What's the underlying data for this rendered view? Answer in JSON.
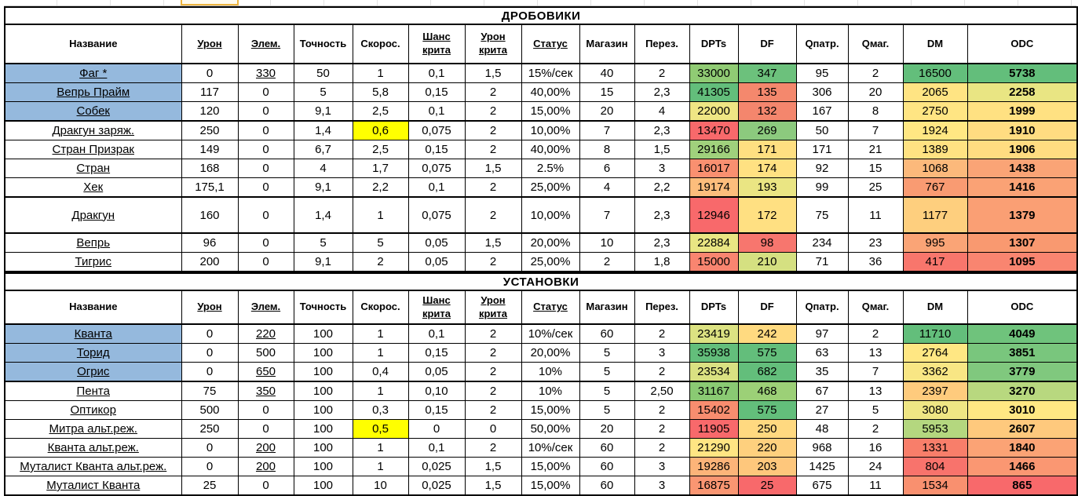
{
  "palette": {
    "name_fill": "#95B9DD",
    "highlight_yellow": "#FFFF00",
    "link_color": "#2233CC",
    "scale_red": "#F8696B",
    "scale_yellow": "#FFEB84",
    "scale_green": "#63BE7B"
  },
  "columns": [
    {
      "key": "name",
      "label": "Название",
      "link": false
    },
    {
      "key": "dmg",
      "label": "Урон",
      "link": true
    },
    {
      "key": "elem",
      "label": "Элем.",
      "link": true
    },
    {
      "key": "accuracy",
      "label": "Точность",
      "link": false
    },
    {
      "key": "speed",
      "label": "Скорос.",
      "link": false
    },
    {
      "key": "crit_chance",
      "label": "Шанс\nкрита",
      "link": true
    },
    {
      "key": "crit_dmg",
      "label": "Урон\nкрита",
      "link": true
    },
    {
      "key": "status",
      "label": "Статус",
      "link": true
    },
    {
      "key": "magazine",
      "label": "Магазин",
      "link": false
    },
    {
      "key": "reload",
      "label": "Перез.",
      "link": false
    },
    {
      "key": "dpts",
      "label": "DPTs",
      "link": false
    },
    {
      "key": "df",
      "label": "DF",
      "link": false
    },
    {
      "key": "qpatr",
      "label": "Qпатр.",
      "link": false
    },
    {
      "key": "qmag",
      "label": "Qмаг.",
      "link": false
    },
    {
      "key": "dm",
      "label": "DM",
      "link": false
    },
    {
      "key": "odc",
      "label": "ODC",
      "link": false
    }
  ],
  "tables": [
    {
      "title": "ДРОБОВИКИ",
      "rows": [
        {
          "name": "Фаг *",
          "highlight": true,
          "dmg": "0",
          "elem": "330",
          "elem_link": true,
          "accuracy": "50",
          "speed": "1",
          "crit_chance": "0,1",
          "crit_dmg": "1,5",
          "status": "15%/сек",
          "magazine": "40",
          "reload": "2",
          "dpts": "33000",
          "dpts_bg": "#90CB74",
          "df": "347",
          "df_bg": "#6CC17C",
          "qpatr": "95",
          "qmag": "2",
          "dm": "16500",
          "dm_bg": "#63BE7B",
          "odc": "5738",
          "odc_bg": "#63BE7B"
        },
        {
          "name": "Вепрь Прайм",
          "highlight": true,
          "dmg": "117",
          "elem": "0",
          "accuracy": "5",
          "speed": "5,8",
          "crit_chance": "0,15",
          "crit_dmg": "2",
          "status": "40,00%",
          "magazine": "15",
          "reload": "2,3",
          "dpts": "41305",
          "dpts_bg": "#63BE7B",
          "df": "135",
          "df_bg": "#F4886D",
          "qpatr": "306",
          "qmag": "20",
          "dm": "2065",
          "dm_bg": "#FFE483",
          "odc": "2258",
          "odc_bg": "#E9E583"
        },
        {
          "name": "Собек",
          "highlight": true,
          "group_end": true,
          "dmg": "120",
          "elem": "0",
          "accuracy": "9,1",
          "speed": "2,5",
          "crit_chance": "0,1",
          "crit_dmg": "2",
          "status": "15,00%",
          "magazine": "20",
          "reload": "4",
          "dpts": "22000",
          "dpts_bg": "#EFE684",
          "df": "132",
          "df_bg": "#F4866D",
          "qpatr": "167",
          "qmag": "8",
          "dm": "2750",
          "dm_bg": "#FFE583",
          "odc": "1999",
          "odc_bg": "#FFE182"
        },
        {
          "name": "Дракгун заряж.",
          "dmg": "250",
          "elem": "0",
          "accuracy": "1,4",
          "speed": "0,6",
          "speed_hl": true,
          "crit_chance": "0,075",
          "crit_dmg": "2",
          "status": "10,00%",
          "magazine": "7",
          "reload": "2,3",
          "dpts": "13470",
          "dpts_bg": "#F8696B",
          "df": "269",
          "df_bg": "#8CCA7E",
          "qpatr": "50",
          "qmag": "7",
          "dm": "1924",
          "dm_bg": "#FFE783",
          "odc": "1910",
          "odc_bg": "#FFDC81"
        },
        {
          "name": "Стран Призрак",
          "dmg": "149",
          "elem": "0",
          "accuracy": "6,7",
          "speed": "2,5",
          "crit_chance": "0,15",
          "crit_dmg": "2",
          "status": "40,00%",
          "magazine": "8",
          "reload": "1,5",
          "dpts": "29166",
          "dpts_bg": "#A0D17C",
          "df": "171",
          "df_bg": "#FFDF81",
          "qpatr": "171",
          "qmag": "21",
          "dm": "1389",
          "dm_bg": "#FFE282",
          "odc": "1906",
          "odc_bg": "#FFDC81"
        },
        {
          "name": "Стран",
          "dmg": "168",
          "elem": "0",
          "accuracy": "4",
          "speed": "1,7",
          "crit_chance": "0,075",
          "crit_dmg": "1,5",
          "status": "2.5%",
          "magazine": "6",
          "reload": "3",
          "dpts": "16017",
          "dpts_bg": "#F99070",
          "df": "174",
          "df_bg": "#FFE182",
          "qpatr": "92",
          "qmag": "15",
          "dm": "1068",
          "dm_bg": "#FCB97B",
          "odc": "1438",
          "odc_bg": "#FAA476"
        },
        {
          "name": "Хек",
          "dmg": "175,1",
          "elem": "0",
          "accuracy": "9,1",
          "speed": "2,2",
          "crit_chance": "0,1",
          "crit_dmg": "2",
          "status": "25,00%",
          "magazine": "4",
          "reload": "2,2",
          "dpts": "19174",
          "dpts_bg": "#FCBD7C",
          "df": "193",
          "df_bg": "#EAE583",
          "qpatr": "99",
          "qmag": "25",
          "dm": "767",
          "dm_bg": "#F99B72",
          "odc": "1416",
          "odc_bg": "#FAA275"
        },
        {
          "name": "Дракгун",
          "tall": true,
          "thick_top": true,
          "dmg": "160",
          "elem": "0",
          "accuracy": "1,4",
          "speed": "1",
          "crit_chance": "0,075",
          "crit_dmg": "2",
          "status": "10,00%",
          "magazine": "7",
          "reload": "2,3",
          "dpts": "12946",
          "dpts_bg": "#F8696B",
          "df": "172",
          "df_bg": "#FFE082",
          "qpatr": "75",
          "qmag": "11",
          "dm": "1177",
          "dm_bg": "#FECF7E",
          "odc": "1379",
          "odc_bg": "#FA9F74"
        },
        {
          "name": "Вепрь",
          "thick_top": true,
          "dmg": "96",
          "elem": "0",
          "accuracy": "5",
          "speed": "5",
          "crit_chance": "0,05",
          "crit_dmg": "1,5",
          "status": "20,00%",
          "magazine": "10",
          "reload": "2,3",
          "dpts": "22884",
          "dpts_bg": "#E9E583",
          "df": "98",
          "df_bg": "#F7766E",
          "qpatr": "234",
          "qmag": "23",
          "dm": "995",
          "dm_bg": "#FAA476",
          "odc": "1307",
          "odc_bg": "#F99970"
        },
        {
          "name": "Тигрис",
          "dmg": "200",
          "elem": "0",
          "accuracy": "9,1",
          "speed": "2",
          "crit_chance": "0,05",
          "crit_dmg": "2",
          "status": "25,00%",
          "magazine": "2",
          "reload": "1,8",
          "dpts": "15000",
          "dpts_bg": "#F98570",
          "df": "210",
          "df_bg": "#D5E081",
          "qpatr": "71",
          "qmag": "36",
          "dm": "417",
          "dm_bg": "#F8766C",
          "odc": "1095",
          "odc_bg": "#F98570"
        }
      ]
    },
    {
      "title": "УСТАНОВКИ",
      "rows": [
        {
          "name": "Кванта",
          "highlight": true,
          "dmg": "0",
          "elem": "220",
          "elem_link": true,
          "accuracy": "100",
          "speed": "1",
          "crit_chance": "0,1",
          "crit_dmg": "2",
          "status": "10%/сек",
          "magazine": "60",
          "reload": "2",
          "dpts": "23419",
          "dpts_bg": "#DCE282",
          "df": "242",
          "df_bg": "#FFDA80",
          "qpatr": "97",
          "qmag": "2",
          "dm": "11710",
          "dm_bg": "#63BE7B",
          "odc": "4049",
          "odc_bg": "#6FC37C"
        },
        {
          "name": "Торид",
          "highlight": true,
          "dmg": "0",
          "elem": "500",
          "accuracy": "100",
          "speed": "1",
          "crit_chance": "0,15",
          "crit_dmg": "2",
          "status": "20,00%",
          "magazine": "5",
          "reload": "3",
          "dpts": "35938",
          "dpts_bg": "#63BE7B",
          "df": "575",
          "df_bg": "#63BE7B",
          "qpatr": "63",
          "qmag": "13",
          "dm": "2764",
          "dm_bg": "#FFE783",
          "odc": "3851",
          "odc_bg": "#79C67D"
        },
        {
          "name": "Огрис",
          "highlight": true,
          "group_end": true,
          "dmg": "0",
          "elem": "650",
          "elem_link": true,
          "accuracy": "100",
          "speed": "0,4",
          "crit_chance": "0,05",
          "crit_dmg": "2",
          "status": "10%",
          "magazine": "5",
          "reload": "2",
          "dpts": "23534",
          "dpts_bg": "#DAE182",
          "df": "682",
          "df_bg": "#63BE7B",
          "qpatr": "35",
          "qmag": "7",
          "dm": "3362",
          "dm_bg": "#F8E684",
          "odc": "3779",
          "odc_bg": "#80C87E"
        },
        {
          "name": "Пента",
          "dmg": "75",
          "elem": "350",
          "elem_link": true,
          "accuracy": "100",
          "speed": "1",
          "crit_chance": "0,10",
          "crit_dmg": "2",
          "status": "10%",
          "magazine": "5",
          "reload": "2,50",
          "dpts": "31167",
          "dpts_bg": "#8ACA73",
          "df": "468",
          "df_bg": "#9CD077",
          "qpatr": "67",
          "qmag": "13",
          "dm": "2397",
          "dm_bg": "#FECB7D",
          "odc": "3270",
          "odc_bg": "#B8D87F"
        },
        {
          "name": "Оптикор",
          "dmg": "500",
          "elem": "0",
          "accuracy": "100",
          "speed": "0,3",
          "crit_chance": "0,15",
          "crit_dmg": "2",
          "status": "15,00%",
          "magazine": "5",
          "reload": "2",
          "dpts": "15402",
          "dpts_bg": "#F88D6F",
          "df": "575",
          "df_bg": "#63BE7B",
          "qpatr": "27",
          "qmag": "5",
          "dm": "3080",
          "dm_bg": "#EFE684",
          "odc": "3010",
          "odc_bg": "#FFE883"
        },
        {
          "name": "Митра альт.реж.",
          "dmg": "250",
          "elem": "0",
          "accuracy": "100",
          "speed": "0,5",
          "speed_hl": true,
          "crit_chance": "0",
          "crit_dmg": "0",
          "status": "50,00%",
          "magazine": "20",
          "reload": "2",
          "dpts": "11905",
          "dpts_bg": "#F8696B",
          "df": "250",
          "df_bg": "#FFD980",
          "qpatr": "48",
          "qmag": "2",
          "dm": "5953",
          "dm_bg": "#B4D77F",
          "odc": "2607",
          "odc_bg": "#FEC97D"
        },
        {
          "name": "Кванта альт.реж.",
          "dmg": "0",
          "elem": "200",
          "elem_link": true,
          "accuracy": "100",
          "speed": "1",
          "crit_chance": "0,1",
          "crit_dmg": "2",
          "status": "10%/сек",
          "magazine": "60",
          "reload": "2",
          "dpts": "21290",
          "dpts_bg": "#FFE583",
          "df": "220",
          "df_bg": "#FED07E",
          "qpatr": "968",
          "qmag": "16",
          "dm": "1331",
          "dm_bg": "#F87E6A",
          "odc": "1840",
          "odc_bg": "#FBA375"
        },
        {
          "name": "Муталист Кванта альт.реж.",
          "dmg": "0",
          "elem": "200",
          "elem_link": true,
          "accuracy": "100",
          "speed": "1",
          "crit_chance": "0,025",
          "crit_dmg": "1,5",
          "status": "15,00%",
          "magazine": "60",
          "reload": "3",
          "dpts": "19286",
          "dpts_bg": "#FCB479",
          "df": "203",
          "df_bg": "#FEC77C",
          "qpatr": "1425",
          "qmag": "24",
          "dm": "804",
          "dm_bg": "#F8736C",
          "odc": "1466",
          "odc_bg": "#FA9772"
        },
        {
          "name": "Муталист Кванта",
          "dmg": "25",
          "elem": "0",
          "accuracy": "100",
          "speed": "10",
          "crit_chance": "0,025",
          "crit_dmg": "1,5",
          "status": "15,00%",
          "magazine": "60",
          "reload": "3",
          "dpts": "16875",
          "dpts_bg": "#FA9672",
          "df": "25",
          "df_bg": "#F8696B",
          "qpatr": "675",
          "qmag": "11",
          "dm": "1534",
          "dm_bg": "#F9906F",
          "odc": "865",
          "odc_bg": "#F8696B"
        }
      ]
    }
  ]
}
